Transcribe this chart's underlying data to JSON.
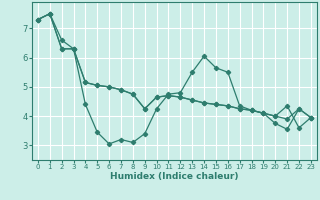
{
  "title": "",
  "xlabel": "Humidex (Indice chaleur)",
  "bg_color": "#cceee8",
  "grid_color": "#ffffff",
  "line_color": "#2e7d6e",
  "xlim": [
    -0.5,
    23.5
  ],
  "ylim": [
    2.5,
    7.9
  ],
  "xticks": [
    0,
    1,
    2,
    3,
    4,
    5,
    6,
    7,
    8,
    9,
    10,
    11,
    12,
    13,
    14,
    15,
    16,
    17,
    18,
    19,
    20,
    21,
    22,
    23
  ],
  "yticks": [
    3,
    4,
    5,
    6,
    7
  ],
  "series": [
    {
      "x": [
        0,
        1,
        2,
        3,
        4,
        5,
        6,
        7,
        8,
        9,
        10,
        11,
        12,
        13,
        14,
        15,
        16,
        17,
        18,
        19,
        20,
        21,
        22,
        23
      ],
      "y": [
        7.3,
        7.5,
        6.6,
        6.3,
        4.4,
        3.45,
        3.05,
        3.2,
        3.1,
        3.4,
        4.25,
        4.75,
        4.8,
        5.5,
        6.05,
        5.65,
        5.5,
        4.35,
        4.2,
        4.1,
        3.75,
        3.55,
        4.25,
        3.95
      ]
    },
    {
      "x": [
        0,
        1,
        2,
        3,
        4,
        5,
        6,
        7,
        8,
        9,
        10,
        11,
        12,
        13,
        14,
        15,
        16,
        17,
        18,
        19,
        20,
        21,
        22,
        23
      ],
      "y": [
        7.3,
        7.5,
        6.3,
        6.3,
        5.15,
        5.05,
        5.0,
        4.9,
        4.75,
        4.25,
        4.65,
        4.7,
        4.65,
        4.55,
        4.45,
        4.4,
        4.35,
        4.25,
        4.2,
        4.1,
        4.0,
        3.9,
        4.25,
        3.95
      ]
    },
    {
      "x": [
        0,
        1,
        2,
        3,
        4,
        5,
        6,
        7,
        8,
        9,
        10,
        11,
        12,
        13,
        14,
        15,
        16,
        17,
        18,
        19,
        20,
        21,
        22,
        23
      ],
      "y": [
        7.3,
        7.5,
        6.3,
        6.3,
        5.15,
        5.05,
        5.0,
        4.9,
        4.75,
        4.25,
        4.65,
        4.7,
        4.65,
        4.55,
        4.45,
        4.4,
        4.35,
        4.25,
        4.2,
        4.1,
        4.0,
        4.35,
        3.6,
        3.95
      ]
    }
  ]
}
